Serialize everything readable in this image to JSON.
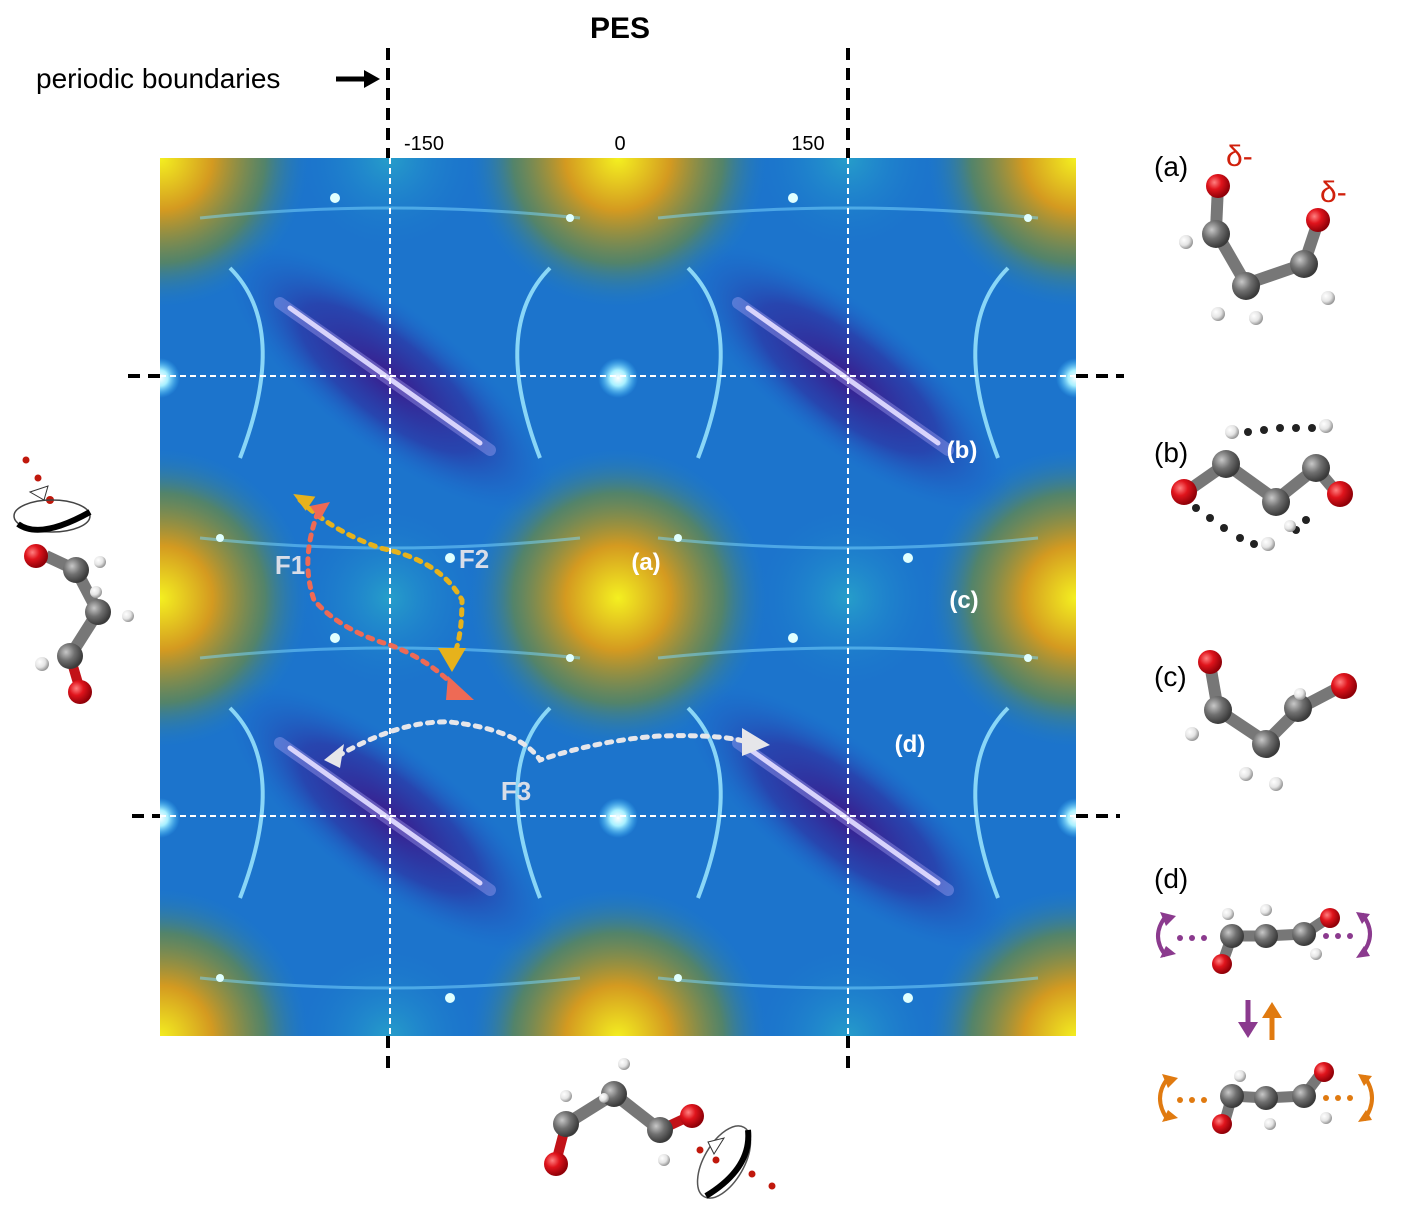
{
  "title": "PES",
  "periodic_note": "periodic boundaries",
  "axis_ticks": [
    "-150",
    "0",
    "150"
  ],
  "map_labels": {
    "a": "(a)",
    "b": "(b)",
    "c": "(c)",
    "d": "(d)"
  },
  "paths": {
    "f1": {
      "label": "F1",
      "color": "#ee6a55"
    },
    "f2": {
      "label": "F2",
      "color": "#e6b21c"
    },
    "f3": {
      "label": "F3",
      "color": "#e6e6ea"
    }
  },
  "structures": {
    "a": {
      "label": "(a)",
      "charge_1": "δ-",
      "charge_2": "δ-"
    },
    "b": {
      "label": "(b)"
    },
    "c": {
      "label": "(c)"
    },
    "d": {
      "label": "(d)"
    }
  },
  "colors": {
    "oxygen": "#e0141c",
    "carbon": "#6e6e6e",
    "hydrogen": "#e8e8e8",
    "charge": "#d0200c",
    "rotation_top": "#8b3a8e",
    "rotation_bottom": "#e07a10",
    "map_low": "#2a1a7a",
    "map_mid": "#1a78d0",
    "map_high": "#f0e020"
  },
  "icons": [
    "rotation-arrow-icon",
    "down-arrow-icon",
    "up-arrow-icon",
    "right-arrow-icon"
  ]
}
